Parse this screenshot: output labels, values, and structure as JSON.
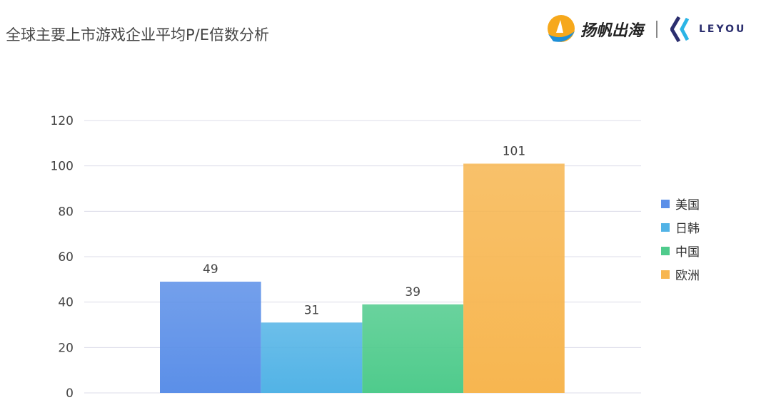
{
  "header": {
    "title": "全球主要上市游戏企业平均P/E倍数分析",
    "brand": "扬帆出海",
    "partner": "LEYOU"
  },
  "chart_data": {
    "type": "bar",
    "title": "",
    "xlabel": "",
    "ylabel": "",
    "ylim": [
      0,
      120
    ],
    "yticks": [
      0,
      20,
      40,
      60,
      80,
      100,
      120
    ],
    "grid": true,
    "legend": "right",
    "series": [
      {
        "name": "美国",
        "value": 49,
        "color": "#5b8fe8"
      },
      {
        "name": "日韩",
        "value": 31,
        "color": "#52b3e6"
      },
      {
        "name": "中国",
        "value": 39,
        "color": "#4fcb8c"
      },
      {
        "name": "欧洲",
        "value": 101,
        "color": "#f7b650"
      }
    ]
  }
}
